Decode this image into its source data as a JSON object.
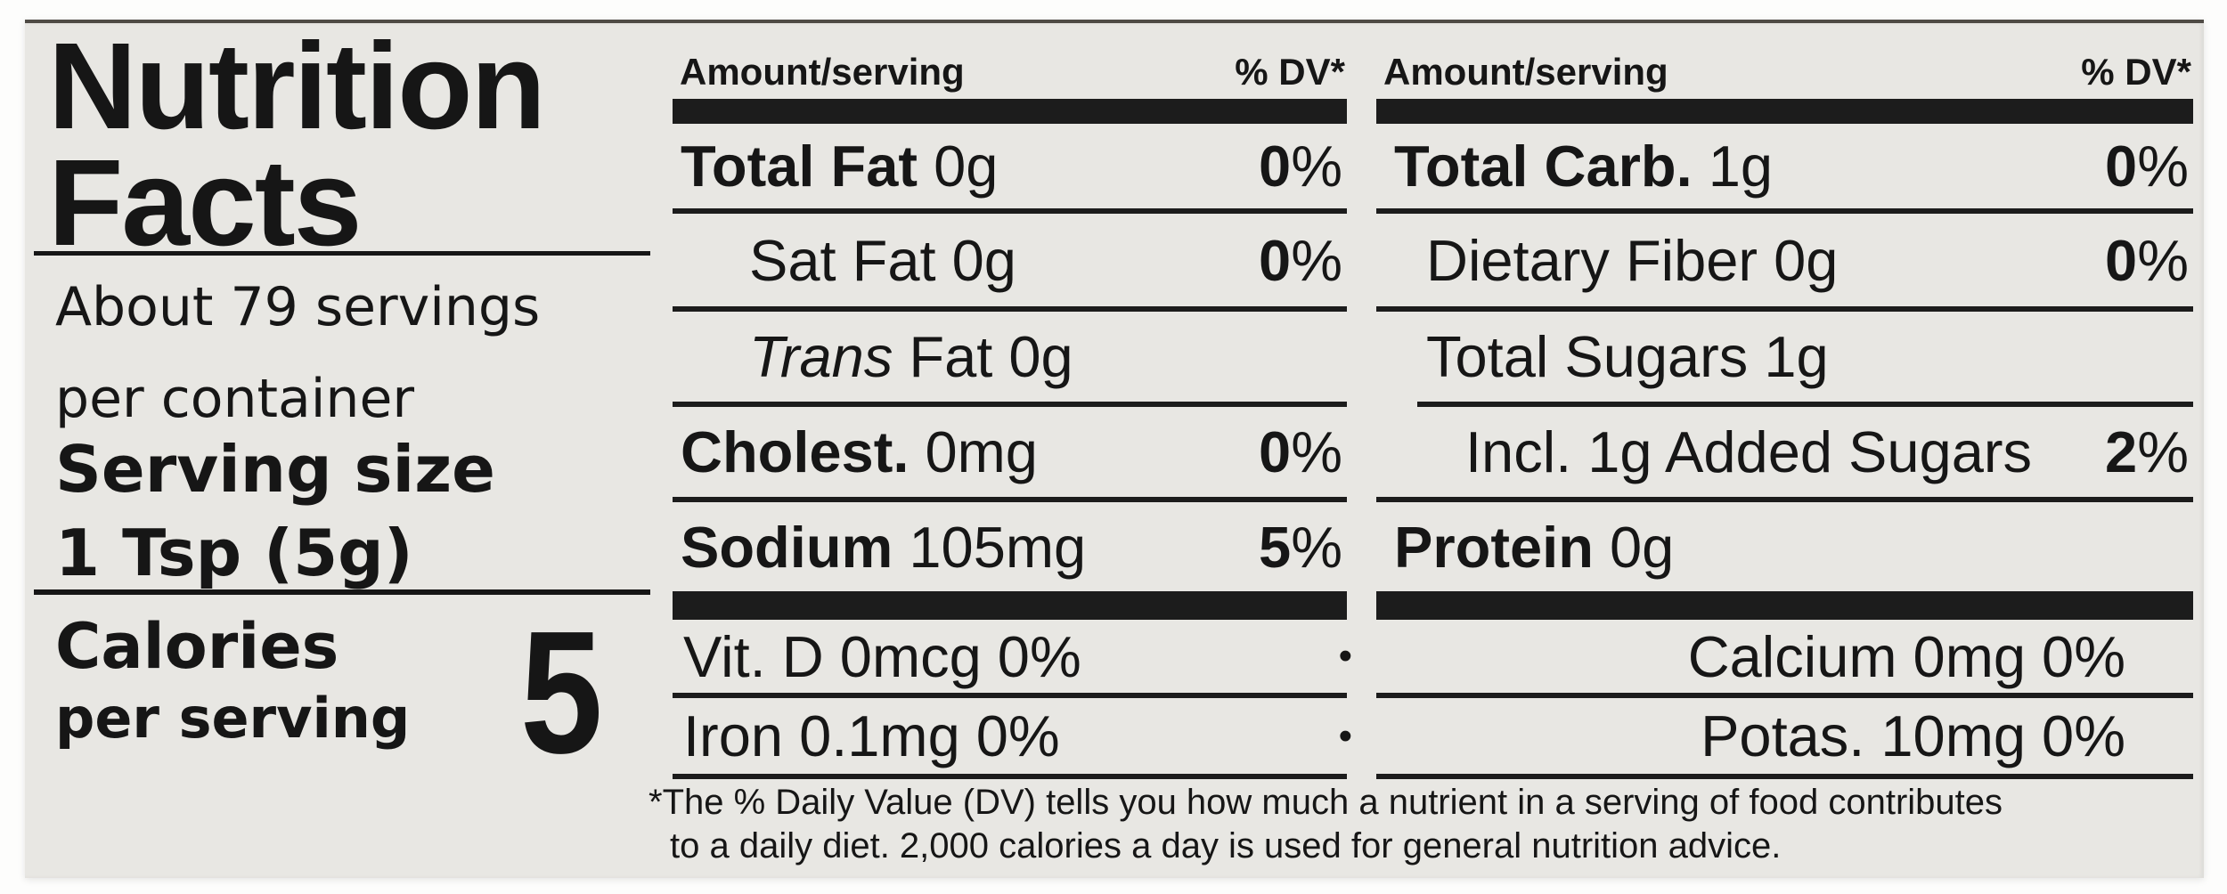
{
  "nutrition_label": {
    "title": [
      "Nutrition",
      "Facts"
    ],
    "servings_per_container": [
      "About 79 servings",
      "per container"
    ],
    "serving_size_label": "Serving size",
    "serving_size_value": "1 Tsp (5g)",
    "calories_label": "Calories",
    "calories_sublabel": "per serving",
    "calories_value": "5",
    "column_header": {
      "left": "Amount/serving",
      "right": "% DV*"
    },
    "bullet": "•",
    "columns": [
      {
        "rows": [
          {
            "name": "Total Fat",
            "bold": true,
            "amount": "0g",
            "dv": "0%",
            "indent": 0
          },
          {
            "name": "Sat Fat",
            "bold": false,
            "amount": "0g",
            "dv": "0%",
            "indent": 1
          },
          {
            "name_italic": "Trans",
            "name": "Fat",
            "bold": false,
            "amount": "0g",
            "dv": "",
            "indent": 1
          },
          {
            "name": "Cholest.",
            "bold": true,
            "amount": "0mg",
            "dv": "0%",
            "indent": 0
          },
          {
            "name": "Sodium",
            "bold": true,
            "amount": "105mg",
            "dv": "5%",
            "indent": 0
          }
        ],
        "micros": [
          "Vit. D 0mcg 0%",
          "Iron 0.1mg 0%"
        ]
      },
      {
        "rows": [
          {
            "name": "Total Carb.",
            "bold": true,
            "amount": "1g",
            "dv": "0%",
            "indent": 0
          },
          {
            "name": "Dietary Fiber",
            "bold": false,
            "amount": "0g",
            "dv": "0%",
            "indent": 1
          },
          {
            "name": "Total Sugars",
            "bold": false,
            "amount": "1g",
            "dv": "",
            "indent": 1
          },
          {
            "name": "Incl. 1g Added Sugars",
            "bold": false,
            "amount": "",
            "dv": "2%",
            "indent": 2,
            "rule_above_indent": true
          },
          {
            "name": "Protein",
            "bold": true,
            "amount": "0g",
            "dv": "",
            "indent": 0
          }
        ],
        "micros": [
          "Calcium 0mg 0%",
          "Potas. 10mg 0%"
        ]
      }
    ],
    "footnote": [
      "*The % Daily Value (DV) tells you how much a nutrient in a serving of food contributes",
      "to a daily diet. 2,000 calories a day is used for general nutrition advice."
    ]
  }
}
